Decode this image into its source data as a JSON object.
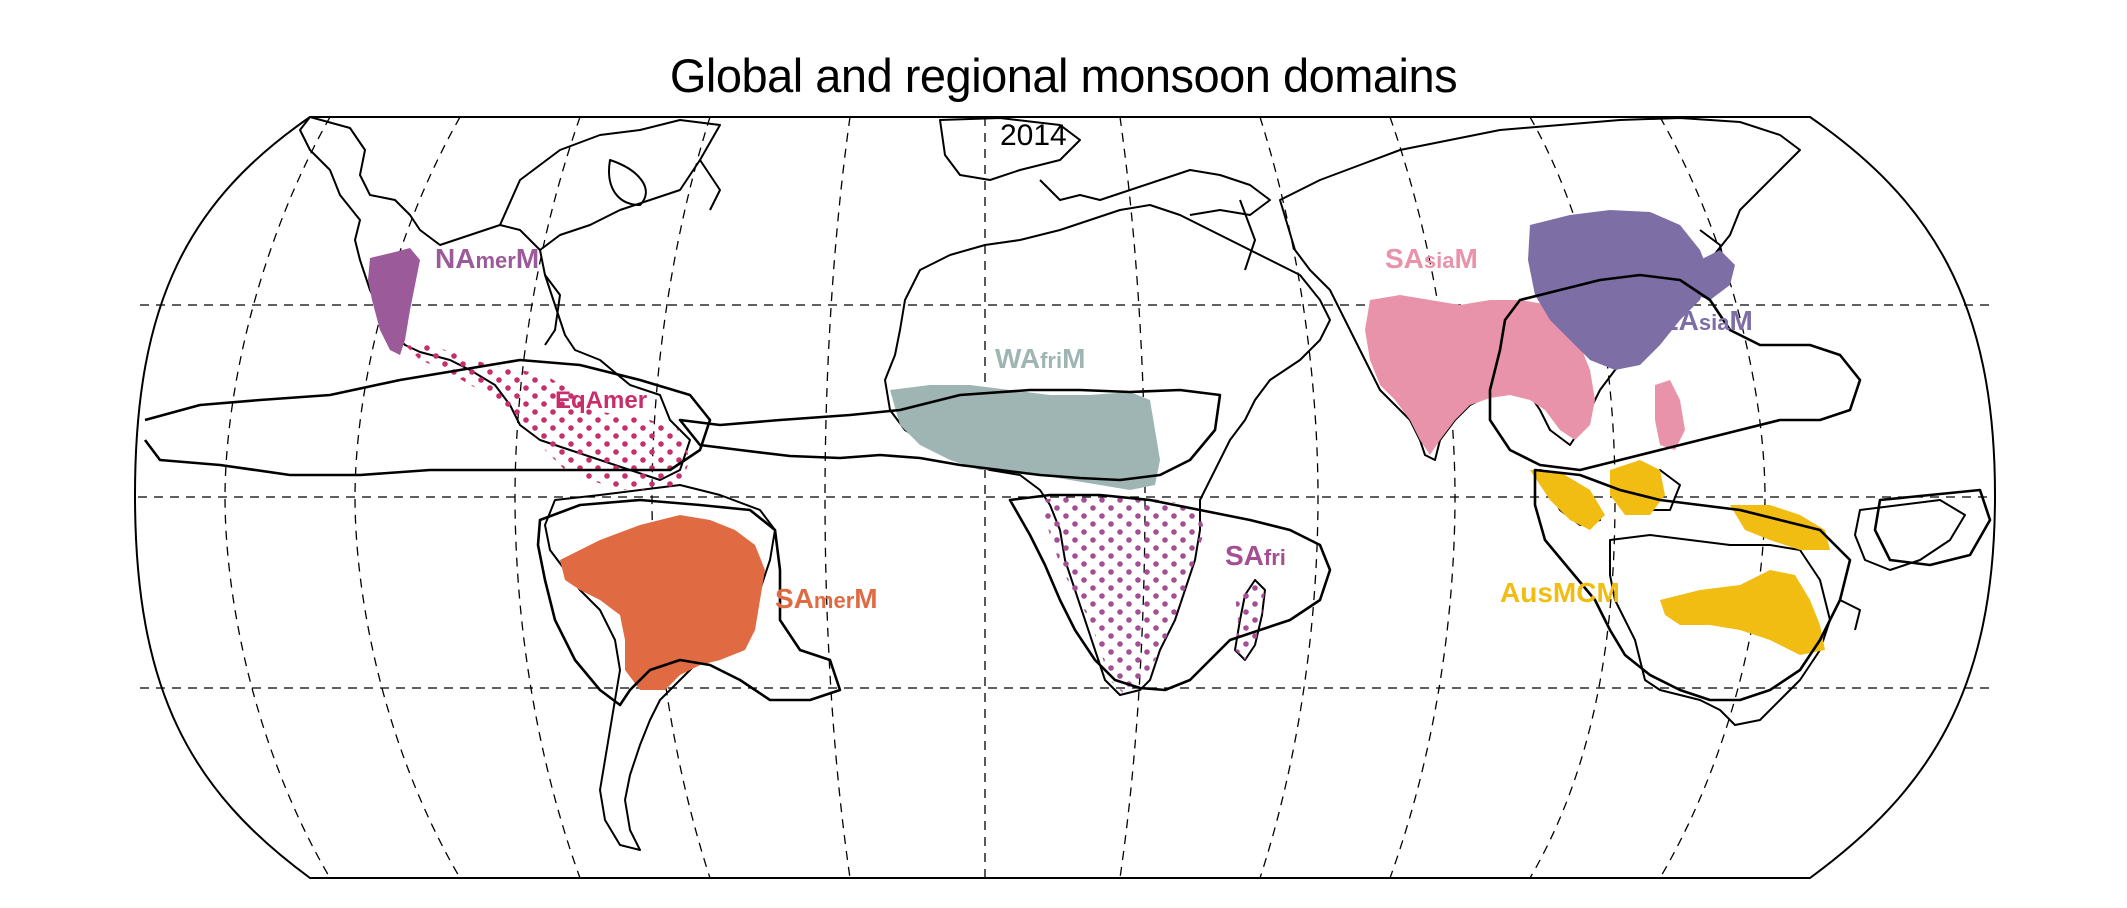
{
  "title": "Global and regional monsoon domains",
  "overlay_text": "2014",
  "colors": {
    "NAmerM": "#9b5a9a",
    "EqAmer": "#c72e6c",
    "SAmerM": "#e06a42",
    "WAfriM": "#9eb5b3",
    "SAfri": "#a44f93",
    "SAsiaM": "#e893aa",
    "EAsiaM": "#7e6ea6",
    "AusMCM": "#f1bd12"
  },
  "regions": [
    {
      "id": "NAmerM",
      "big1": "NA",
      "small": "mer",
      "big2": "M",
      "fill": "solid"
    },
    {
      "id": "EqAmer",
      "big1": "EqAmer",
      "small": "",
      "big2": "",
      "fill": "dots"
    },
    {
      "id": "SAmerM",
      "big1": "SA",
      "small": "mer",
      "big2": "M",
      "fill": "solid"
    },
    {
      "id": "WAfriM",
      "big1": "WA",
      "small": "fri",
      "big2": "M",
      "fill": "solid"
    },
    {
      "id": "SAfri",
      "big1": "SA",
      "small": "fri",
      "big2": "",
      "fill": "dots"
    },
    {
      "id": "SAsiaM",
      "big1": "SA",
      "small": "sia",
      "big2": "M",
      "fill": "solid"
    },
    {
      "id": "EAsiaM",
      "big1": "EA",
      "small": "sia",
      "big2": "M",
      "fill": "solid"
    },
    {
      "id": "AusMCM",
      "big1": "AusMCM",
      "small": "",
      "big2": "",
      "fill": "solid"
    }
  ]
}
